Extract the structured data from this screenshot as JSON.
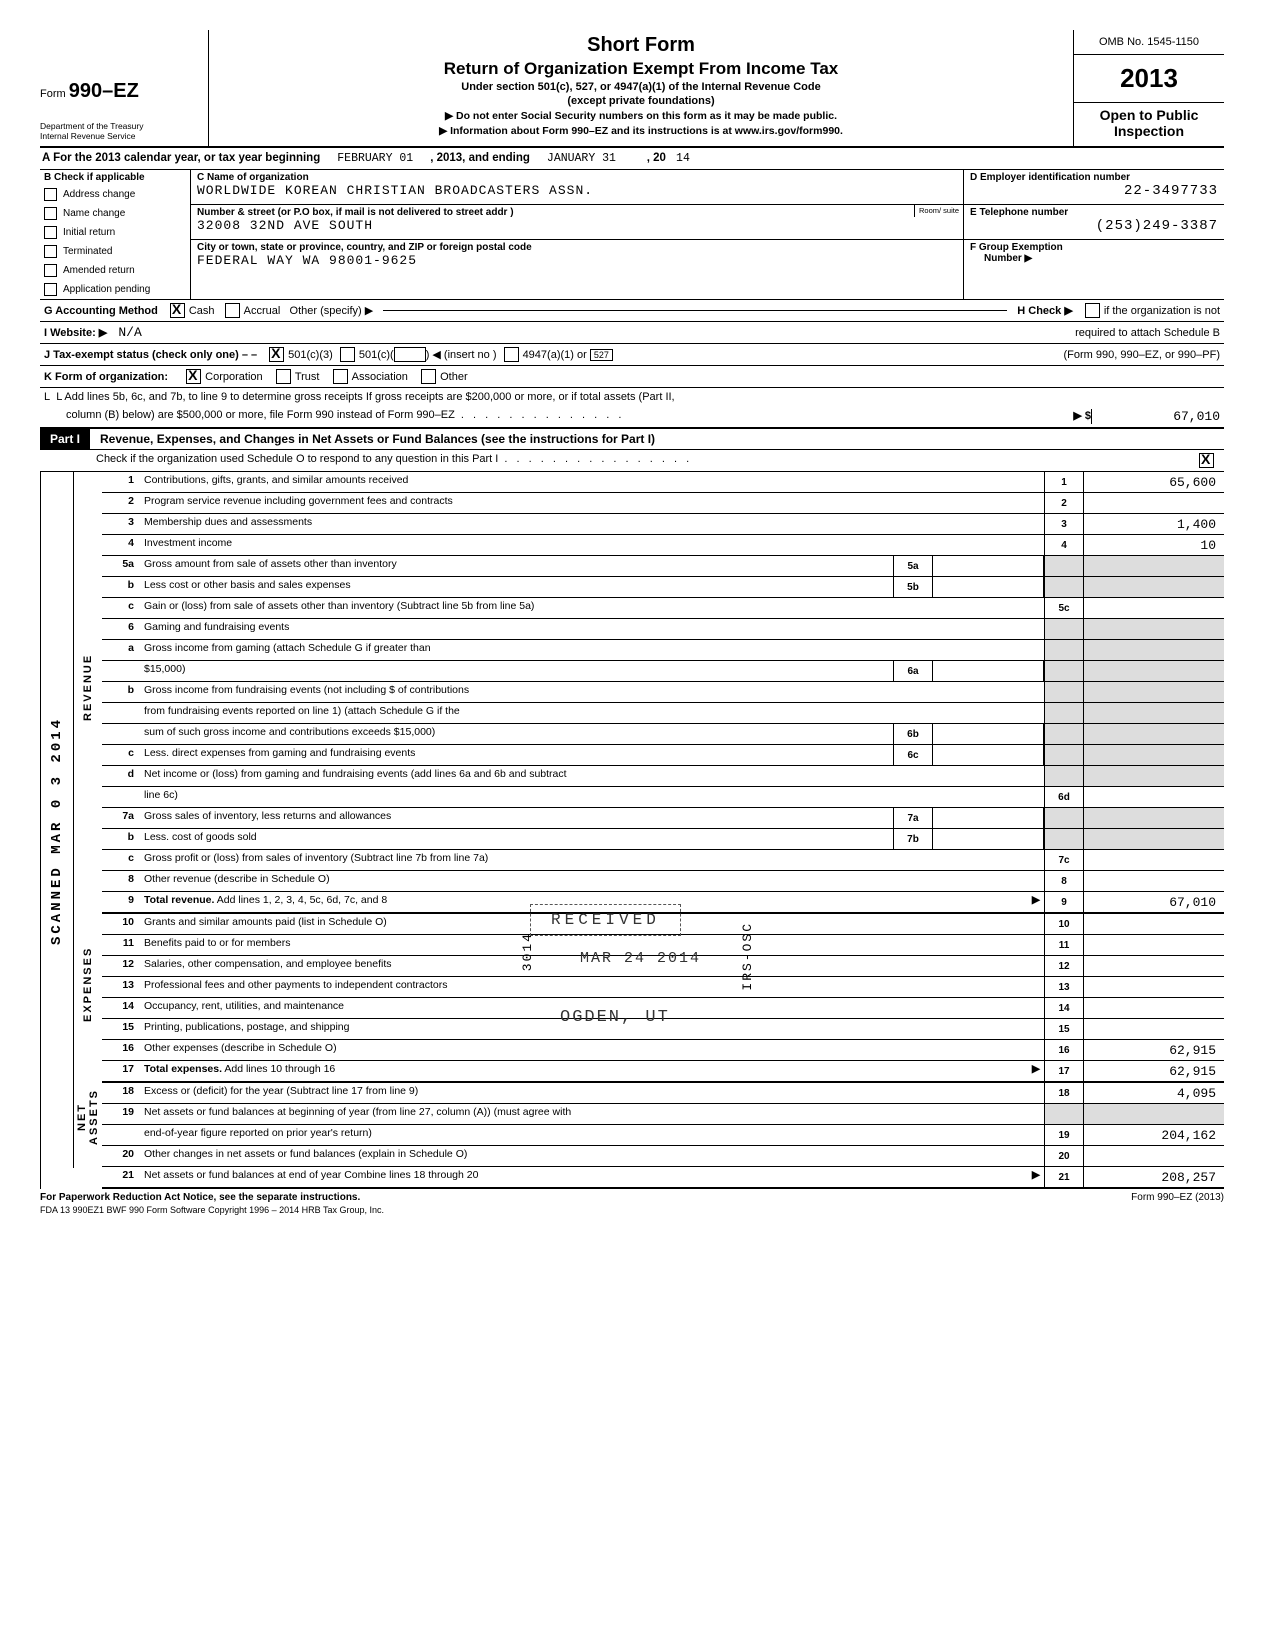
{
  "header": {
    "form_no_prefix": "Form",
    "form_no": "990–EZ",
    "dept1": "Department of the Treasury",
    "dept2": "Internal Revenue Service",
    "title1": "Short Form",
    "title2": "Return of Organization Exempt From Income Tax",
    "sub1": "Under section 501(c), 527, or 4947(a)(1) of the Internal Revenue Code",
    "sub2": "(except private foundations)",
    "arrow1": "▶ Do not enter Social Security numbers on this form as it may be made public.",
    "arrow2": "▶ Information about Form 990–EZ and its instructions is at www.irs.gov/form990.",
    "omb": "OMB No. 1545-1150",
    "year": "2013",
    "open1": "Open to Public",
    "open2": "Inspection"
  },
  "row_a": {
    "label": "A  For the 2013 calendar year, or tax year beginning",
    "begin": "FEBRUARY 01",
    "mid": ", 2013, and ending",
    "end": "JANUARY 31",
    "suffix": ", 20",
    "yy": "14"
  },
  "col_b": {
    "hdr": "B  Check if applicable",
    "items": [
      "Address change",
      "Name change",
      "Initial return",
      "Terminated",
      "Amended return",
      "Application pending"
    ]
  },
  "col_c": {
    "c_label": "C  Name of organization",
    "c_val": "WORLDWIDE KOREAN CHRISTIAN BROADCASTERS ASSN.",
    "addr_label": "Number & street (or P.O  box, if mail is not delivered to street addr )",
    "addr_val": "32008 32ND AVE SOUTH",
    "room": "Room/\nsuite",
    "city_label": "City or town, state or province, country, and ZIP or foreign postal code",
    "city_val": "FEDERAL WAY WA 98001-9625"
  },
  "col_def": {
    "d_label": "D  Employer identification number",
    "d_val": "22-3497733",
    "e_label": "E  Telephone number",
    "e_val": "(253)249-3387",
    "f_label": "F  Group Exemption",
    "f_label2": "Number  ▶"
  },
  "line_g": {
    "label": "G  Accounting Method",
    "opt1": "Cash",
    "opt2": "Accrual",
    "opt3": "Other (specify) ▶",
    "h_label": "H  Check ▶",
    "h_text": "if the organization is not"
  },
  "line_i": {
    "label": "I   Website: ▶",
    "val": "N/A",
    "h_text2": "required to attach Schedule B"
  },
  "line_j": {
    "label": "J   Tax-exempt status (check only one) – –",
    "o1": "501(c)(3)",
    "o2": "501(c)(",
    "o2b": ")  ◀ (insert no )",
    "o3": "4947(a)(1) or",
    "o4": "527",
    "right": "(Form 990, 990–EZ, or 990–PF)"
  },
  "line_k": {
    "label": "K  Form of organization:",
    "o1": "Corporation",
    "o2": "Trust",
    "o3": "Association",
    "o4": "Other"
  },
  "line_l": {
    "text1": "L  Add lines 5b, 6c, and 7b, to line 9 to determine gross receipts  If gross receipts are $200,000 or more, or if total assets (Part II,",
    "text2": "column (B) below) are $500,000 or more, file Form 990 instead of Form 990–EZ",
    "arrow": "▶  $",
    "amount": "67,010"
  },
  "part1": {
    "box": "Part I",
    "title": "Revenue, Expenses, and Changes in Net Assets or Fund Balances (see the instructions for Part I)",
    "sched": "Check if the organization used Schedule O to respond to any question in this Part I"
  },
  "revenue_rows": [
    {
      "n": "1",
      "d": "Contributions, gifts, grants, and similar amounts received",
      "r": "1",
      "v": "65,600"
    },
    {
      "n": "2",
      "d": "Program service revenue including government fees and contracts",
      "r": "2",
      "v": ""
    },
    {
      "n": "3",
      "d": "Membership dues and assessments",
      "r": "3",
      "v": "1,400"
    },
    {
      "n": "4",
      "d": "Investment income",
      "r": "4",
      "v": "10"
    },
    {
      "n": "5a",
      "d": "Gross amount from sale of assets other than inventory",
      "m": "5a"
    },
    {
      "n": "b",
      "d": "Less  cost or other basis and sales expenses",
      "m": "5b"
    },
    {
      "n": "c",
      "d": "Gain or (loss) from sale of assets other than inventory (Subtract line 5b from line 5a)",
      "r": "5c",
      "v": ""
    },
    {
      "n": "6",
      "d": "Gaming and fundraising events"
    },
    {
      "n": "a",
      "d": "Gross income from gaming (attach Schedule G if greater than"
    },
    {
      "n": "",
      "d": "$15,000)",
      "m": "6a"
    },
    {
      "n": "b",
      "d": "Gross income from fundraising events (not including   $                               of contributions"
    },
    {
      "n": "",
      "d": "from fundraising events reported on line 1) (attach Schedule G if the"
    },
    {
      "n": "",
      "d": "sum of such gross income and contributions exceeds $15,000)",
      "m": "6b"
    },
    {
      "n": "c",
      "d": "Less. direct expenses from gaming and fundraising events",
      "m": "6c"
    },
    {
      "n": "d",
      "d": "Net income or (loss) from gaming and fundraising events (add lines 6a and 6b and subtract"
    },
    {
      "n": "",
      "d": "line 6c)",
      "r": "6d",
      "v": ""
    },
    {
      "n": "7a",
      "d": "Gross sales of inventory, less returns and allowances",
      "m": "7a"
    },
    {
      "n": "b",
      "d": "Less. cost of goods sold",
      "m": "7b"
    },
    {
      "n": "c",
      "d": "Gross profit or (loss) from sales of inventory (Subtract line 7b from line 7a)",
      "r": "7c",
      "v": ""
    },
    {
      "n": "8",
      "d": "Other revenue (describe in Schedule O)",
      "r": "8",
      "v": ""
    },
    {
      "n": "9",
      "d": "Total revenue. Add lines 1, 2, 3, 4, 5c, 6d, 7c, and 8",
      "r": "9",
      "v": "67,010",
      "arrow": true,
      "bold": true
    }
  ],
  "expense_rows": [
    {
      "n": "10",
      "d": "Grants and similar amounts paid (list in Schedule O)",
      "r": "10",
      "v": ""
    },
    {
      "n": "11",
      "d": "Benefits paid to or for members",
      "r": "11",
      "v": ""
    },
    {
      "n": "12",
      "d": "Salaries, other compensation, and employee benefits",
      "r": "12",
      "v": ""
    },
    {
      "n": "13",
      "d": "Professional fees and other payments to independent contractors",
      "r": "13",
      "v": ""
    },
    {
      "n": "14",
      "d": "Occupancy, rent, utilities, and maintenance",
      "r": "14",
      "v": ""
    },
    {
      "n": "15",
      "d": "Printing, publications, postage, and shipping",
      "r": "15",
      "v": ""
    },
    {
      "n": "16",
      "d": "Other expenses (describe in Schedule O)",
      "r": "16",
      "v": "62,915"
    },
    {
      "n": "17",
      "d": "Total expenses. Add lines 10 through 16",
      "r": "17",
      "v": "62,915",
      "arrow": true,
      "bold": true
    }
  ],
  "asset_rows": [
    {
      "n": "18",
      "d": "Excess or (deficit) for the year (Subtract line 17 from line 9)",
      "r": "18",
      "v": "4,095"
    },
    {
      "n": "19",
      "d": "Net assets or fund balances at beginning of year (from line 27, column (A)) (must agree with"
    },
    {
      "n": "",
      "d": "end-of-year figure reported on prior year's return)",
      "r": "19",
      "v": "204,162"
    },
    {
      "n": "20",
      "d": "Other changes in net assets or fund balances (explain in Schedule O)",
      "r": "20",
      "v": ""
    },
    {
      "n": "21",
      "d": "Net assets or fund balances at end of year  Combine lines 18 through 20",
      "r": "21",
      "v": "208,257",
      "arrow": true
    }
  ],
  "side_labels": {
    "stamp": "SCANNED MAR 0 3 2014",
    "rev": "REVENUE",
    "exp": "EXPENSES",
    "net": "NET\nASSETS"
  },
  "stamps": {
    "received": "RECEIVED",
    "date": "MAR 24 2014",
    "ogden": "OGDEN, UT",
    "irs": "IRS-OSC",
    "num": "3014"
  },
  "footer": {
    "l": "For Paperwork Reduction Act Notice, see the separate instructions.",
    "m": "FDA     13   990EZ1       BWF 990       Form Software Copyright 1996 – 2014 HRB Tax Group, Inc.",
    "r": "Form 990–EZ (2013)"
  }
}
